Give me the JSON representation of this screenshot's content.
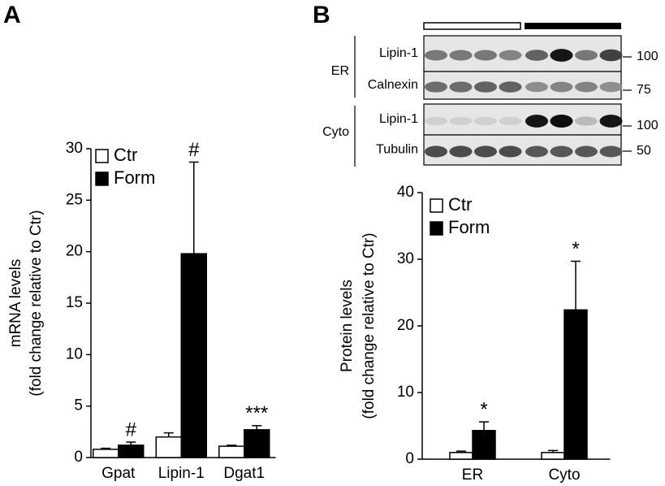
{
  "panel_labels": [
    "A",
    "B"
  ],
  "blot": {
    "groups": [
      {
        "label": "ER",
        "rows": [
          {
            "protein": "Lipin-1",
            "marker": 100
          },
          {
            "protein": "Calnexin",
            "marker": 75
          }
        ]
      },
      {
        "label": "Cyto",
        "rows": [
          {
            "protein": "Lipin-1",
            "marker": 100
          },
          {
            "protein": "Tubulin",
            "marker": 50
          }
        ]
      }
    ]
  },
  "chart_data": [
    {
      "type": "bar",
      "ylabel": [
        "mRNA levels",
        "(fold change relative to Ctr)"
      ],
      "categories": [
        "Gpat",
        "Lipin-1",
        "Dgat1"
      ],
      "series": [
        {
          "name": "Ctr",
          "color": "#ffffff",
          "values": [
            0.8,
            2.0,
            1.1
          ],
          "errors": [
            0.1,
            0.4,
            0.1
          ]
        },
        {
          "name": "Form",
          "color": "#000000",
          "values": [
            1.2,
            19.8,
            2.7
          ],
          "errors": [
            0.3,
            8.9,
            0.4
          ],
          "annotations": [
            "#",
            "#",
            "***"
          ]
        }
      ],
      "ylim": [
        0,
        30
      ],
      "yticks": [
        0,
        5,
        10,
        15,
        20,
        25,
        30
      ],
      "legend": "upper left"
    },
    {
      "type": "bar",
      "ylabel": [
        "Protein levels",
        "(fold change relative to Ctr)"
      ],
      "categories": [
        "ER",
        "Cyto"
      ],
      "series": [
        {
          "name": "Ctr",
          "color": "#ffffff",
          "values": [
            1.0,
            1.0
          ],
          "errors": [
            0.2,
            0.3
          ]
        },
        {
          "name": "Form",
          "color": "#000000",
          "values": [
            4.3,
            22.4
          ],
          "errors": [
            1.3,
            7.3
          ],
          "annotations": [
            "*",
            "*"
          ]
        }
      ],
      "ylim": [
        0,
        40
      ],
      "yticks": [
        0,
        10,
        20,
        30,
        40
      ],
      "legend": "upper left"
    }
  ]
}
